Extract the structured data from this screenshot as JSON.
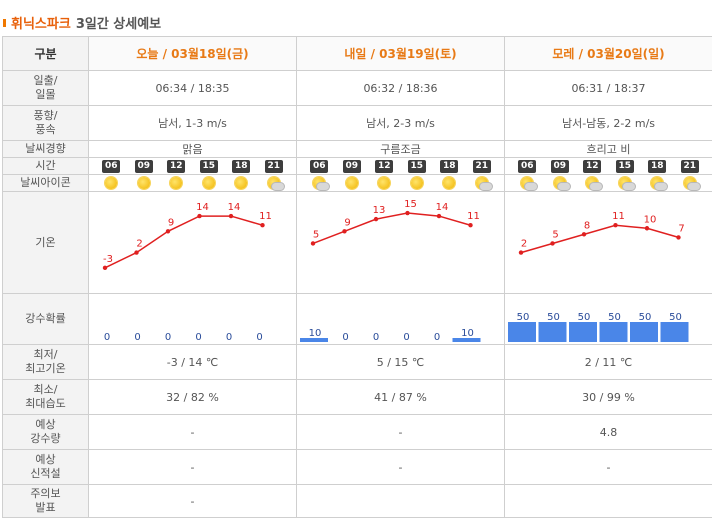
{
  "title": {
    "brand": "휘닉스파크",
    "rest": "3일간 상세예보"
  },
  "header": {
    "label": "구분",
    "days": [
      {
        "label": "오늘 / 03월18일(금)"
      },
      {
        "label": "내일 / 03월19일(토)"
      },
      {
        "label": "모레 / 03월20일(일)"
      }
    ]
  },
  "rows": {
    "sunrise": {
      "label_l1": "일출/",
      "label_l2": "일몰",
      "values": [
        "06:34 / 18:35",
        "06:32 / 18:36",
        "06:31 / 18:37"
      ]
    },
    "wind": {
      "label_l1": "풍향/",
      "label_l2": "풍속",
      "values": [
        "남서, 1-3 m/s",
        "남서, 2-3 m/s",
        "남서-남동, 2-2 m/s"
      ]
    },
    "trend": {
      "label": "날씨경향",
      "values": [
        "맑음",
        "구름조금",
        "흐리고 비"
      ]
    },
    "time": {
      "label": "시간",
      "hours": [
        "06",
        "09",
        "12",
        "15",
        "18",
        "21"
      ]
    },
    "icon": {
      "label": "날씨아이콘",
      "days": [
        [
          "sun-icon",
          "sun-icon",
          "sun-icon",
          "sun-icon",
          "sun-icon",
          "sun-cloud-icon"
        ],
        [
          "sun-cloud-icon",
          "sun-icon",
          "sun-icon",
          "sun-icon",
          "sun-icon",
          "sun-cloud-icon"
        ],
        [
          "sun-cloud-icon",
          "sun-cloud-icon",
          "sun-cloud-icon",
          "sun-cloud-icon",
          "sun-cloud-icon",
          "sun-cloud-icon"
        ]
      ]
    },
    "temp": {
      "label": "기온"
    },
    "precip": {
      "label": "강수확률"
    },
    "minmax": {
      "label_l1": "최저/",
      "label_l2": "최고기온",
      "values": [
        "-3 / 14 ℃",
        "5 / 15 ℃",
        "2 / 11 ℃"
      ]
    },
    "humidity": {
      "label_l1": "최소/",
      "label_l2": "최대습도",
      "values": [
        "32 / 82 %",
        "41 / 87 %",
        "30 / 99 %"
      ]
    },
    "rain": {
      "label_l1": "예상",
      "label_l2": "강수량",
      "values": [
        "-",
        "-",
        "4.8"
      ]
    },
    "snow": {
      "label_l1": "예상",
      "label_l2": "신적설",
      "values": [
        "-",
        "-",
        "-"
      ]
    },
    "warning": {
      "label_l1": "주의보",
      "label_l2": "발표",
      "values": [
        "-",
        "",
        ""
      ]
    }
  },
  "colors": {
    "accent": "#e8600a",
    "temp_line": "#e02020",
    "precip_bar": "#4a86e8"
  },
  "chart_data": [
    {
      "type": "line",
      "x": [
        "06",
        "09",
        "12",
        "15",
        "18",
        "21"
      ],
      "series": [
        {
          "values": [
            -3,
            2,
            9,
            14,
            14,
            11
          ]
        },
        {
          "values": [
            5,
            9,
            13,
            15,
            14,
            11
          ]
        },
        {
          "values": [
            2,
            5,
            8,
            11,
            10,
            7
          ]
        }
      ],
      "ylabel": "기온"
    },
    {
      "type": "bar",
      "categories": [
        "06",
        "09",
        "12",
        "15",
        "18",
        "21"
      ],
      "series": [
        {
          "values": [
            0,
            0,
            0,
            0,
            0,
            0
          ]
        },
        {
          "values": [
            10,
            0,
            0,
            0,
            0,
            10
          ]
        },
        {
          "values": [
            50,
            50,
            50,
            50,
            50,
            50
          ]
        }
      ],
      "ylabel": "강수확률",
      "ylim": [
        0,
        100
      ]
    }
  ]
}
